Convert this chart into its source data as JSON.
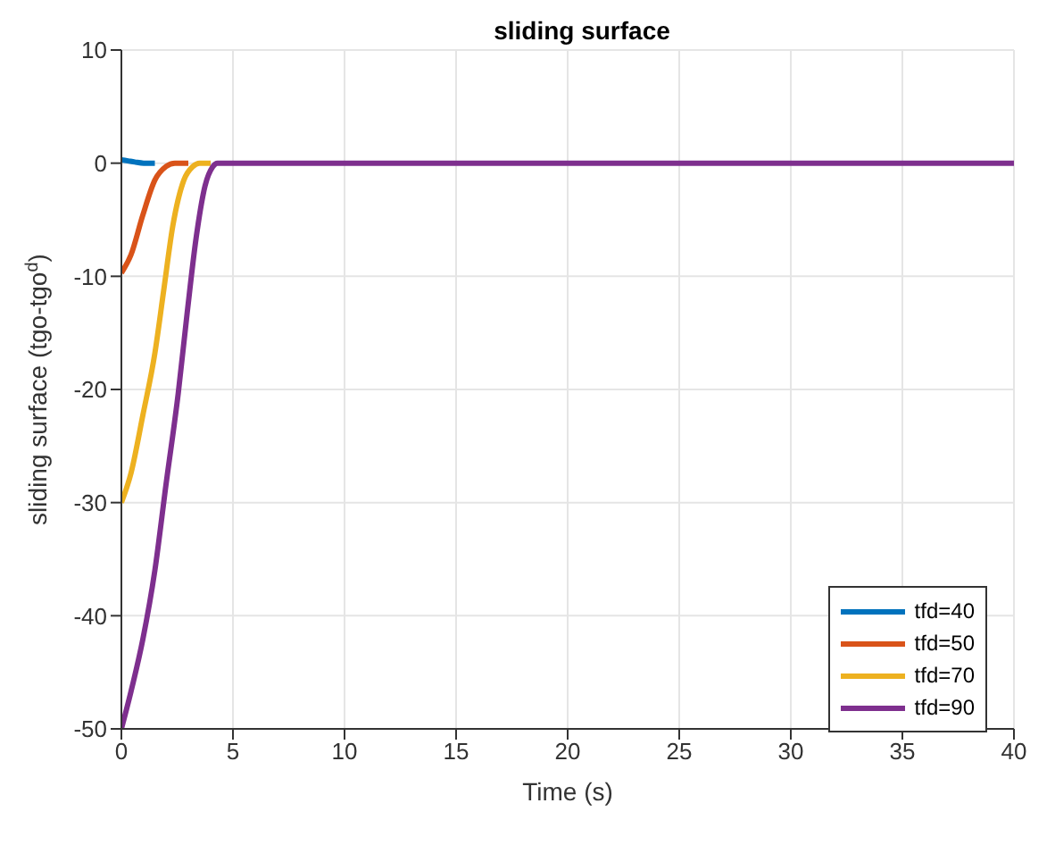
{
  "chart_data": {
    "type": "line",
    "title": "sliding surface",
    "xlabel": "Time (s)",
    "ylabel": "sliding surface (tgo-tgo$^{d}$)",
    "xlim": [
      0,
      40
    ],
    "ylim": [
      -50,
      10
    ],
    "xticks": [
      0,
      5,
      10,
      15,
      20,
      25,
      30,
      35,
      40
    ],
    "yticks": [
      -50,
      -40,
      -30,
      -20,
      -10,
      0,
      10
    ],
    "grid": true,
    "legend": "bottom right",
    "series": [
      {
        "name": "tfd=40",
        "color": "#0072bd",
        "x": [
          0,
          0.3,
          0.6,
          1,
          1.5
        ],
        "values": [
          0.3,
          0.2,
          0.1,
          0,
          0
        ]
      },
      {
        "name": "tfd=50",
        "color": "#d95319",
        "x": [
          0,
          0.43,
          0.96,
          1.5,
          2,
          2.4,
          3
        ],
        "values": [
          -9.7,
          -8.1,
          -4.6,
          -1.5,
          -0.3,
          0,
          0
        ]
      },
      {
        "name": "tfd=70",
        "color": "#edb120",
        "x": [
          0,
          0.43,
          0.96,
          1.5,
          1.9,
          2.3,
          2.8,
          3.2,
          3.5,
          4
        ],
        "values": [
          -30,
          -27.4,
          -22.3,
          -16.8,
          -11.2,
          -5.6,
          -1.5,
          -0.3,
          0,
          0
        ]
      },
      {
        "name": "tfd=90",
        "color": "#7e2f8e",
        "x": [
          0,
          0.43,
          0.96,
          1.5,
          2,
          2.55,
          2.95,
          3.35,
          3.75,
          4.1,
          4.3,
          10,
          20,
          40
        ],
        "values": [
          -50,
          -46.7,
          -42.1,
          -36,
          -28.4,
          -20.3,
          -13.2,
          -6.6,
          -2,
          -0.3,
          0,
          0,
          0,
          0
        ]
      }
    ]
  }
}
